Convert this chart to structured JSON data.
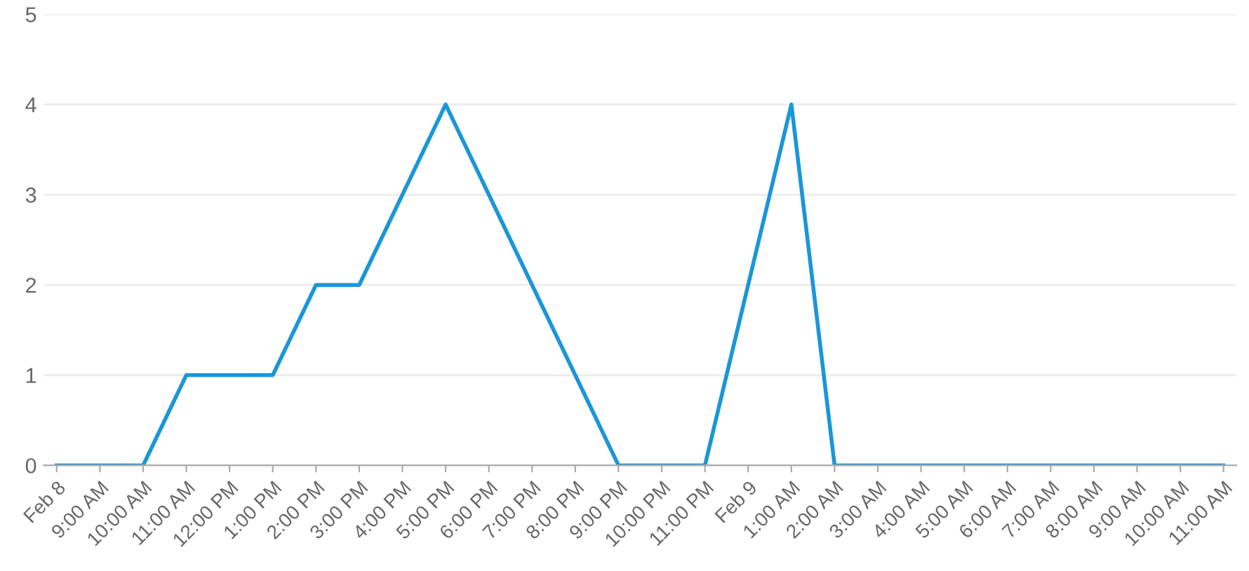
{
  "chart_data": {
    "type": "line",
    "categories": [
      "Feb 8",
      "9:00 AM",
      "10:00 AM",
      "11:00 AM",
      "12:00 PM",
      "1:00 PM",
      "2:00 PM",
      "3:00 PM",
      "4:00 PM",
      "5:00 PM",
      "6:00 PM",
      "7:00 PM",
      "8:00 PM",
      "9:00 PM",
      "10:00 PM",
      "11:00 PM",
      "Feb 9",
      "1:00 AM",
      "2:00 AM",
      "3:00 AM",
      "4:00 AM",
      "5:00 AM",
      "6:00 AM",
      "7:00 AM",
      "8:00 AM",
      "9:00 AM",
      "10:00 AM",
      "11:00 AM"
    ],
    "series": [
      {
        "color": "#1a96d9",
        "values": [
          0,
          0,
          0,
          1,
          1,
          1,
          2,
          2,
          3,
          4,
          3,
          2,
          1,
          0,
          0,
          0,
          2,
          4,
          0,
          0,
          0,
          0,
          0,
          0,
          0,
          0,
          0,
          0
        ]
      }
    ],
    "ylim": [
      0,
      5
    ],
    "yticks": [
      0,
      1,
      2,
      3,
      4,
      5
    ],
    "grid": "y",
    "marker": "none",
    "line_style": "solid",
    "legend": false
  }
}
